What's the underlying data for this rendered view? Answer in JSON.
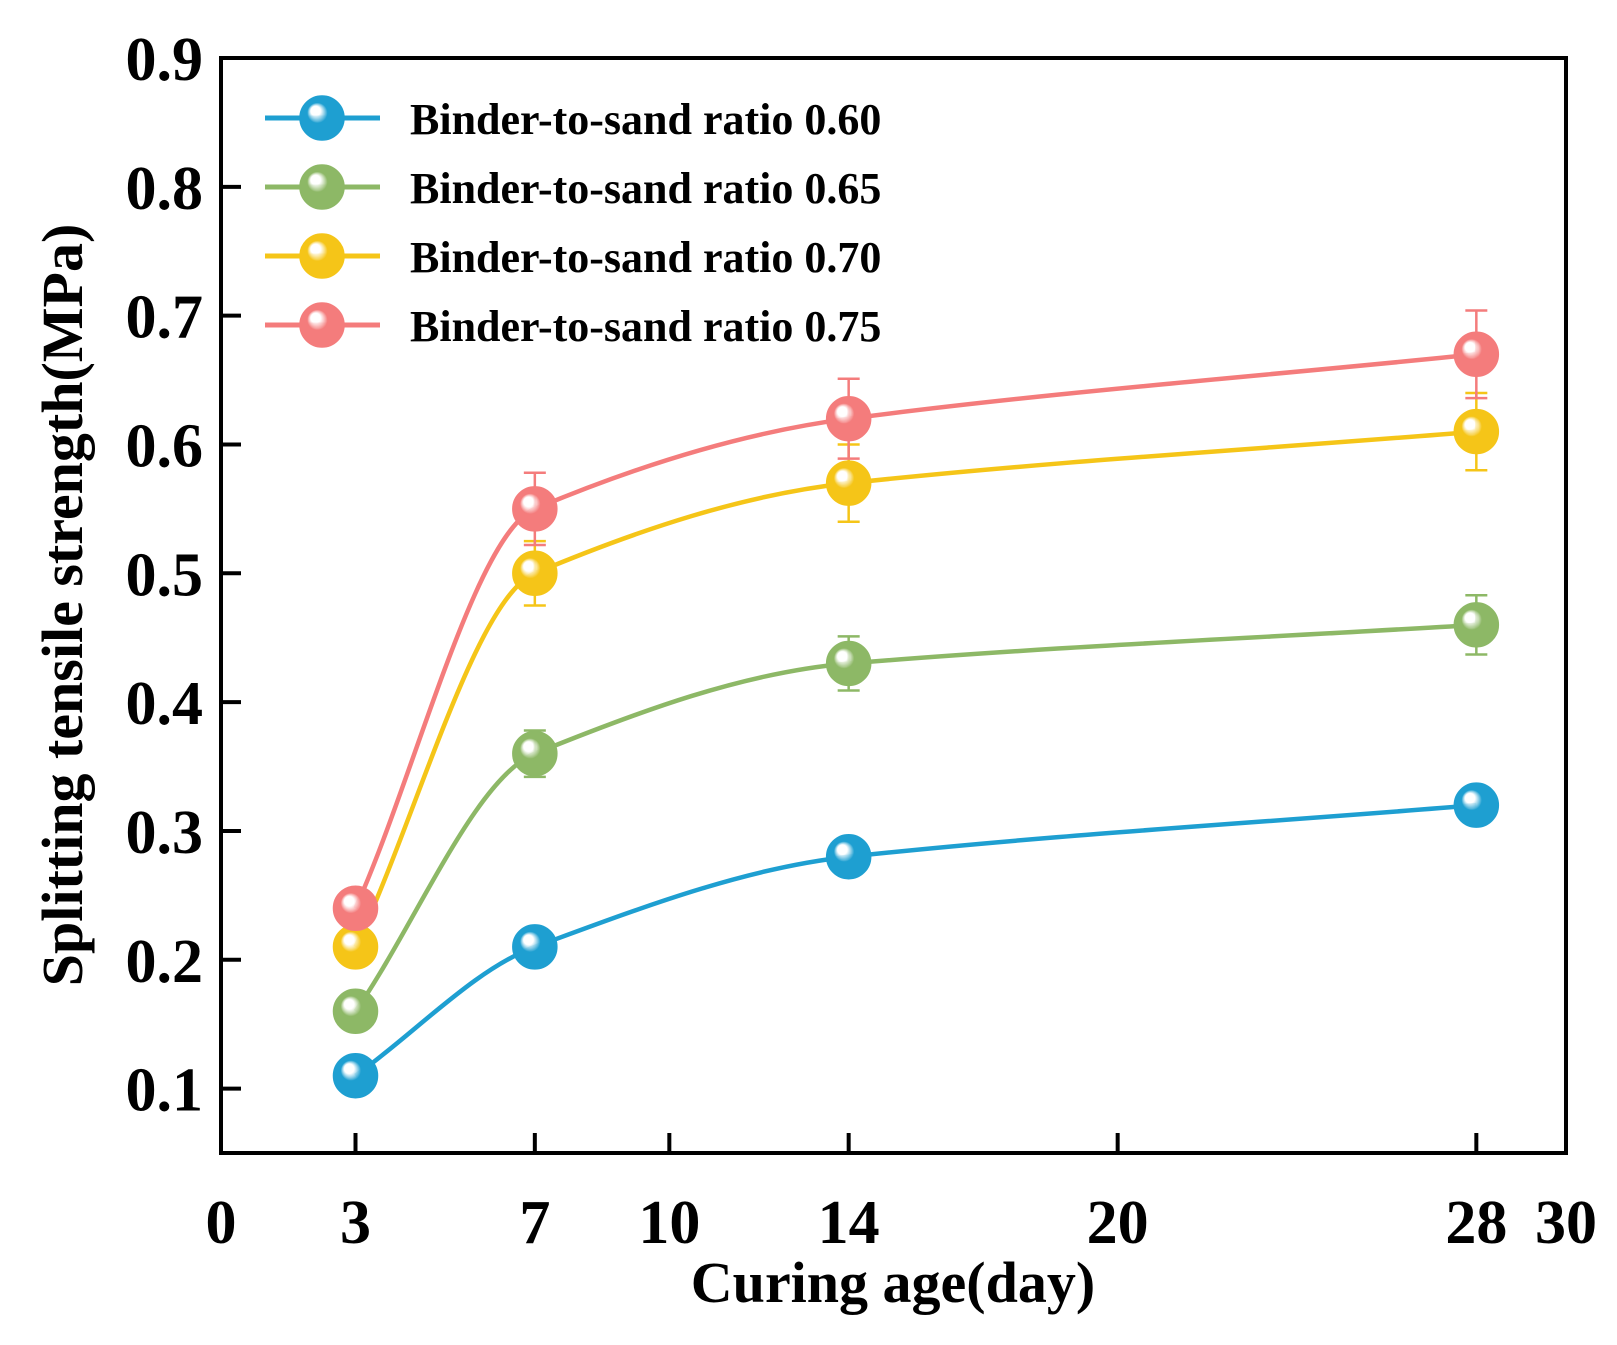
{
  "chart_data": {
    "type": "line",
    "title": "",
    "xlabel": "Curing age(day)",
    "ylabel": "Splitting tensile strength(MPa)",
    "xlim": [
      0,
      30
    ],
    "ylim": [
      0.05,
      0.9
    ],
    "xticks": [
      0,
      3,
      7,
      10,
      14,
      20,
      28,
      30
    ],
    "yticks": [
      0.1,
      0.2,
      0.3,
      0.4,
      0.5,
      0.6,
      0.7,
      0.8,
      0.9
    ],
    "x": [
      3,
      7,
      14,
      28
    ],
    "legend_position": "top-left",
    "series": [
      {
        "name": "Binder-to-sand ratio 0.60",
        "color": "#1e9fd1",
        "values": [
          0.11,
          0.21,
          0.28,
          0.32
        ],
        "error": [
          0.0,
          0.0,
          0.0,
          0.0
        ]
      },
      {
        "name": "Binder-to-sand ratio 0.65",
        "color": "#8db866",
        "values": [
          0.16,
          0.36,
          0.43,
          0.46
        ],
        "error": [
          0.0,
          0.018,
          0.021,
          0.023
        ]
      },
      {
        "name": "Binder-to-sand ratio 0.70",
        "color": "#f5c518",
        "values": [
          0.21,
          0.5,
          0.57,
          0.61
        ],
        "error": [
          0.0,
          0.025,
          0.03,
          0.03
        ]
      },
      {
        "name": "Binder-to-sand ratio 0.75",
        "color": "#f47c7c",
        "values": [
          0.24,
          0.55,
          0.62,
          0.67
        ],
        "error": [
          0.0,
          0.028,
          0.031,
          0.034
        ]
      }
    ]
  }
}
